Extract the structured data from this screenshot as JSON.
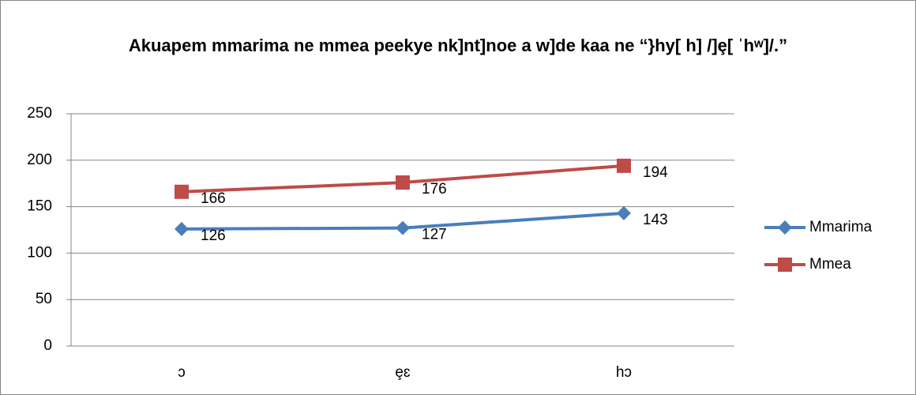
{
  "chart_data": {
    "type": "line",
    "title": "Akuapem mmarima ne mmea peekye nk]nt]noe a w]de kaa ne “}hy[ h] /]ȩ[ ˈhʷ]/.”",
    "categories": [
      "ɔ",
      "ȩɛ",
      "hɔ"
    ],
    "series": [
      {
        "name": "Mmarima",
        "color": "#4a7ebb",
        "marker": "diamond",
        "values": [
          126,
          127,
          143
        ]
      },
      {
        "name": "Mmea",
        "color": "#be4b48",
        "marker": "square",
        "values": [
          166,
          176,
          194
        ]
      }
    ],
    "ylim": [
      0,
      250
    ],
    "yticks": [
      0,
      50,
      100,
      150,
      200,
      250
    ],
    "grid": true,
    "legend": "right"
  }
}
